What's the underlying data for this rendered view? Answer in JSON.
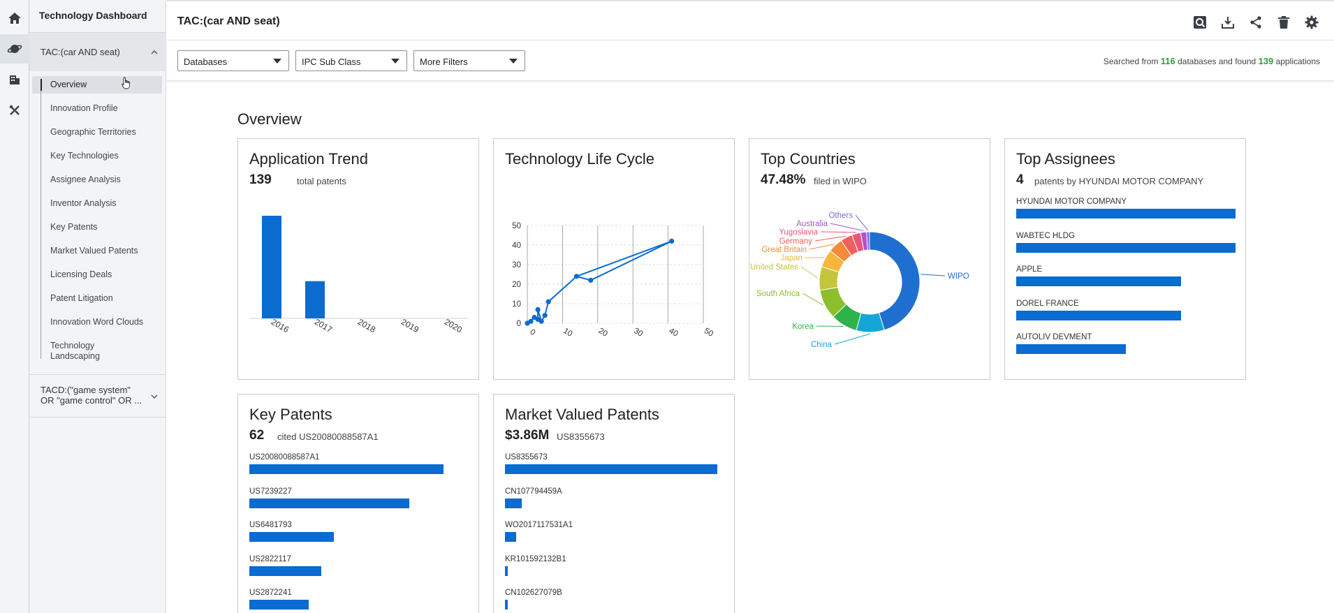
{
  "rail": {
    "icons": [
      "home-icon",
      "planet-icon",
      "building-icon",
      "tools-icon"
    ]
  },
  "sidebar": {
    "title": "Technology Dashboard",
    "section1": "TAC:(car AND seat)",
    "items": [
      {
        "label": "Overview"
      },
      {
        "label": "Innovation Profile"
      },
      {
        "label": "Geographic Territories"
      },
      {
        "label": "Key Technologies"
      },
      {
        "label": "Assignee Analysis"
      },
      {
        "label": "Inventor Analysis"
      },
      {
        "label": "Key Patents"
      },
      {
        "label": "Market Valued Patents"
      },
      {
        "label": "Licensing Deals"
      },
      {
        "label": "Patent Litigation"
      },
      {
        "label": "Innovation Word Clouds"
      },
      {
        "label": "Technology Landscaping"
      }
    ],
    "section2": "TACD:(\"game system\" OR \"game control\" OR ..."
  },
  "header": {
    "title": "TAC:(car AND seat)",
    "tools": [
      "search-report-icon",
      "download-icon",
      "share-icon",
      "delete-icon",
      "settings-icon"
    ]
  },
  "filters": {
    "databases": "Databases",
    "ipc": "IPC Sub Class",
    "more": "More Filters",
    "summary_prefix": "Searched from",
    "db_count": "116",
    "summary_mid": "databases and found",
    "app_count": "139",
    "summary_suffix": "applications"
  },
  "main": {
    "heading": "Overview",
    "app_trend": {
      "title": "Application Trend",
      "stat": "139",
      "sub": "total patents"
    },
    "life_cycle": {
      "title": "Technology Life Cycle"
    },
    "top_countries": {
      "title": "Top Countries",
      "stat": "47.48%",
      "sub": "filed in WIPO"
    },
    "top_assignees": {
      "title": "Top Assignees",
      "stat": "4",
      "sub": "patents by HYUNDAI MOTOR COMPANY"
    },
    "key_patents": {
      "title": "Key Patents",
      "stat": "62",
      "sub": "cited US20080088587A1"
    },
    "market_valued": {
      "title": "Market Valued Patents",
      "stat": "$3.86M",
      "sub": "US8355673"
    }
  },
  "chart_data": [
    {
      "id": "application-trend",
      "type": "bar",
      "categories": [
        "2016",
        "2017",
        "2018",
        "2019",
        "2020"
      ],
      "values": [
        102,
        37,
        0,
        0,
        0
      ]
    },
    {
      "id": "technology-life-cycle",
      "type": "line",
      "xlim": [
        0,
        50
      ],
      "ylim": [
        0,
        50
      ],
      "xticks": [
        "0",
        "10",
        "20",
        "30",
        "40",
        "50"
      ],
      "yticks": [
        "0",
        "10",
        "20",
        "30",
        "40",
        "50"
      ],
      "x": [
        0,
        1,
        2,
        3,
        3,
        4,
        5,
        6,
        14,
        18,
        41
      ],
      "y": [
        0,
        1,
        3,
        2,
        7,
        1,
        4,
        11,
        24,
        22,
        42
      ]
    },
    {
      "id": "top-countries",
      "type": "pie",
      "labels": [
        "WIPO",
        "China",
        "Korea",
        "South Africa",
        "United States",
        "Japan",
        "Great Britain",
        "Germany",
        "Yugoslavia",
        "Australia",
        "Others"
      ],
      "values": [
        47.48,
        9.5,
        9,
        10,
        8,
        6,
        5,
        4,
        3,
        2,
        1
      ],
      "colors": [
        "#1f6fd1",
        "#14a6d6",
        "#2db34a",
        "#8bbf2b",
        "#c3c63b",
        "#f5b63b",
        "#f58a3b",
        "#f0605a",
        "#e8577a",
        "#b44fd0",
        "#7b6ee0"
      ]
    },
    {
      "id": "top-assignees",
      "type": "bar",
      "categories": [
        "HYUNDAI MOTOR COMPANY",
        "WABTEC HLDG",
        "APPLE",
        "DOREL FRANCE",
        "AUTOLIV DEVMENT"
      ],
      "values": [
        4,
        4,
        3,
        3,
        2
      ]
    },
    {
      "id": "key-patents",
      "type": "bar",
      "categories": [
        "US20080088587A1",
        "US7239227",
        "US6481793",
        "US2822117",
        "US2872241"
      ],
      "values": [
        62,
        51,
        27,
        23,
        19
      ]
    },
    {
      "id": "market-valued-patents",
      "type": "bar",
      "categories": [
        "US8355673",
        "CN107794459A",
        "WO2017117531A1",
        "KR101592132B1",
        "CN102627079B"
      ],
      "values": [
        3.86,
        0.3,
        0.2,
        0.05,
        0.05
      ]
    }
  ]
}
